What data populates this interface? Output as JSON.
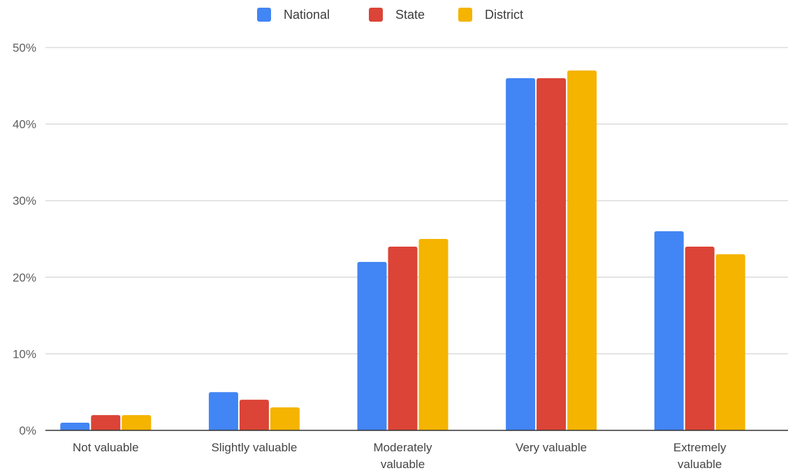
{
  "chart_data": {
    "type": "bar",
    "categories": [
      [
        "Not valuable"
      ],
      [
        "Slightly valuable"
      ],
      [
        "Moderately",
        "valuable"
      ],
      [
        "Very valuable"
      ],
      [
        "Extremely",
        "valuable"
      ]
    ],
    "series": [
      {
        "name": "National",
        "color": "#4285f4",
        "values": [
          1,
          5,
          22,
          46,
          26
        ]
      },
      {
        "name": "State",
        "color": "#db4437",
        "values": [
          2,
          4,
          24,
          46,
          24
        ]
      },
      {
        "name": "District",
        "color": "#f4b400",
        "values": [
          2,
          3,
          25,
          47,
          23
        ]
      }
    ],
    "y_ticks": [
      "0%",
      "10%",
      "20%",
      "30%",
      "40%",
      "50%"
    ],
    "ylim": [
      0,
      50
    ],
    "unit": "%",
    "title": "",
    "xlabel": "",
    "ylabel": "",
    "grid": true,
    "legend_position": "top-center",
    "colors": {
      "grid": "#cccccc",
      "axis": "#333333"
    }
  }
}
